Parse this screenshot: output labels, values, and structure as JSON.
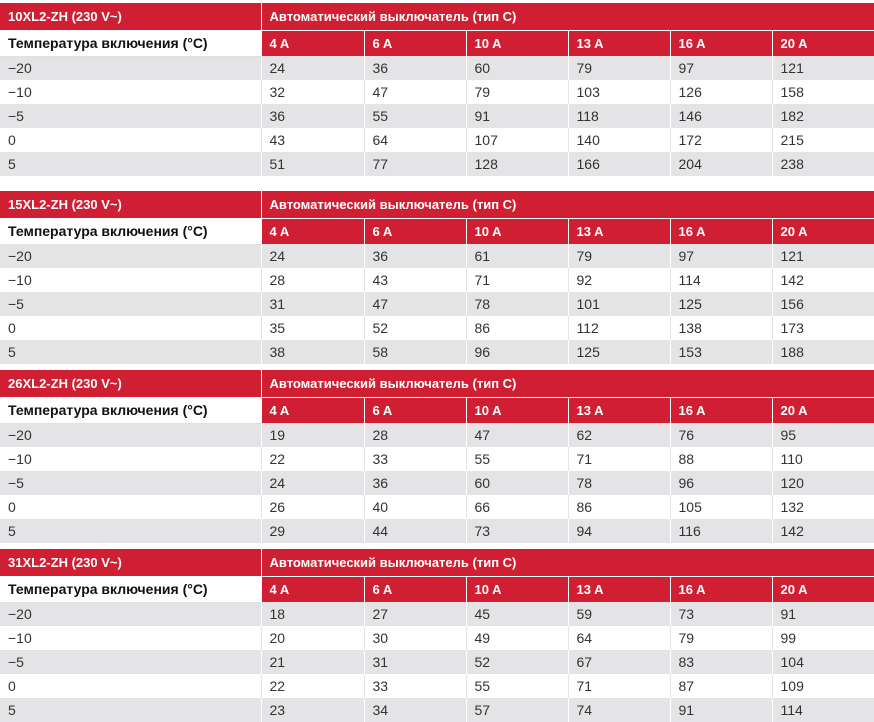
{
  "tables": [
    {
      "cable": "10XL2-ZH (230 V~)",
      "breaker_header": "Автоматический выключатель (тип C)",
      "temp_label": "Температура включения (°C)",
      "ratings": [
        "4 A",
        "6 A",
        "10 A",
        "13 A",
        "16 A",
        "20 A"
      ],
      "rows": [
        {
          "temp": "−20",
          "values": [
            "24",
            "36",
            "60",
            "79",
            "97",
            "121"
          ]
        },
        {
          "temp": "−10",
          "values": [
            "32",
            "47",
            "79",
            "103",
            "126",
            "158"
          ]
        },
        {
          "temp": "−5",
          "values": [
            "36",
            "55",
            "91",
            "118",
            "146",
            "182"
          ]
        },
        {
          "temp": "0",
          "values": [
            "43",
            "64",
            "107",
            "140",
            "172",
            "215"
          ]
        },
        {
          "temp": "5",
          "values": [
            "51",
            "77",
            "128",
            "166",
            "204",
            "238"
          ]
        }
      ]
    },
    {
      "cable": "15XL2-ZH (230 V~)",
      "breaker_header": "Автоматический выключатель (тип C)",
      "temp_label": "Температура включения (°C)",
      "ratings": [
        "4 A",
        "6 A",
        "10 A",
        "13 A",
        "16 A",
        "20 A"
      ],
      "rows": [
        {
          "temp": "−20",
          "values": [
            "24",
            "36",
            "61",
            "79",
            "97",
            "121"
          ]
        },
        {
          "temp": "−10",
          "values": [
            "28",
            "43",
            "71",
            "92",
            "114",
            "142"
          ]
        },
        {
          "temp": "−5",
          "values": [
            "31",
            "47",
            "78",
            "101",
            "125",
            "156"
          ]
        },
        {
          "temp": "0",
          "values": [
            "35",
            "52",
            "86",
            "112",
            "138",
            "173"
          ]
        },
        {
          "temp": "5",
          "values": [
            "38",
            "58",
            "96",
            "125",
            "153",
            "188"
          ]
        }
      ]
    },
    {
      "cable": "26XL2-ZH (230 V~)",
      "breaker_header": "Автоматический выключатель (тип C)",
      "temp_label": "Температура включения (°C)",
      "ratings": [
        "4 A",
        "6 A",
        "10 A",
        "13 A",
        "16 A",
        "20 A"
      ],
      "rows": [
        {
          "temp": "−20",
          "values": [
            "19",
            "28",
            "47",
            "62",
            "76",
            "95"
          ]
        },
        {
          "temp": "−10",
          "values": [
            "22",
            "33",
            "55",
            "71",
            "88",
            "110"
          ]
        },
        {
          "temp": "−5",
          "values": [
            "24",
            "36",
            "60",
            "78",
            "96",
            "120"
          ]
        },
        {
          "temp": "0",
          "values": [
            "26",
            "40",
            "66",
            "86",
            "105",
            "132"
          ]
        },
        {
          "temp": "5",
          "values": [
            "29",
            "44",
            "73",
            "94",
            "116",
            "142"
          ]
        }
      ]
    },
    {
      "cable": "31XL2-ZH (230 V~)",
      "breaker_header": "Автоматический выключатель (тип C)",
      "temp_label": "Температура включения (°C)",
      "ratings": [
        "4 A",
        "6 A",
        "10 A",
        "13 A",
        "16 A",
        "20 A"
      ],
      "rows": [
        {
          "temp": "−20",
          "values": [
            "18",
            "27",
            "45",
            "59",
            "73",
            "91"
          ]
        },
        {
          "temp": "−10",
          "values": [
            "20",
            "30",
            "49",
            "64",
            "79",
            "99"
          ]
        },
        {
          "temp": "−5",
          "values": [
            "21",
            "31",
            "52",
            "67",
            "83",
            "104"
          ]
        },
        {
          "temp": "0",
          "values": [
            "22",
            "33",
            "55",
            "71",
            "87",
            "109"
          ]
        },
        {
          "temp": "5",
          "values": [
            "23",
            "34",
            "57",
            "74",
            "91",
            "114"
          ]
        }
      ]
    }
  ],
  "colors": {
    "header_red": "#d01f32",
    "stripe_gray": "#e4e4e6"
  }
}
